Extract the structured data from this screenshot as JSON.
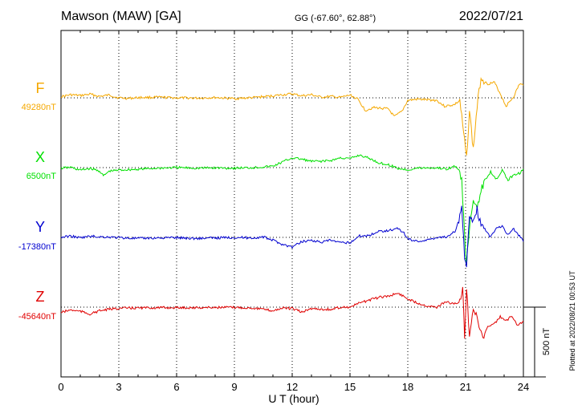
{
  "header": {
    "station": "Mawson (MAW)  [GA]",
    "coords": "GG (-67.60°,  62.88°)",
    "date": "2022/07/21"
  },
  "footer": {
    "plotted_note": "Plotted at 2022/08/21 00:53 UT",
    "scale_label": "500 nT"
  },
  "chart_data": {
    "type": "line",
    "xlabel": "U T (hour)",
    "xlim": [
      0,
      24
    ],
    "x_ticks": [
      0,
      3,
      6,
      9,
      12,
      15,
      18,
      21,
      24
    ],
    "y_unit": "nT",
    "scale_bar_nT": 500,
    "grid": true,
    "series": [
      {
        "name": "F",
        "baseline_label": "49280nT",
        "baseline_nT": 49280,
        "color": "#f5a800",
        "points": [
          [
            0,
            49288
          ],
          [
            0.5,
            49302
          ],
          [
            1,
            49296
          ],
          [
            1.5,
            49306
          ],
          [
            2,
            49290
          ],
          [
            2.5,
            49300
          ],
          [
            3,
            49280
          ],
          [
            3.5,
            49276
          ],
          [
            4,
            49282
          ],
          [
            5,
            49284
          ],
          [
            6,
            49280
          ],
          [
            7,
            49278
          ],
          [
            8,
            49282
          ],
          [
            9,
            49274
          ],
          [
            10,
            49282
          ],
          [
            11,
            49294
          ],
          [
            11.5,
            49302
          ],
          [
            12,
            49308
          ],
          [
            12.5,
            49294
          ],
          [
            13,
            49302
          ],
          [
            13.5,
            49284
          ],
          [
            14,
            49290
          ],
          [
            14.5,
            49282
          ],
          [
            15,
            49300
          ],
          [
            15.4,
            49270
          ],
          [
            15.8,
            49190
          ],
          [
            16.2,
            49210
          ],
          [
            16.6,
            49206
          ],
          [
            17,
            49200
          ],
          [
            17.3,
            49144
          ],
          [
            17.7,
            49184
          ],
          [
            18,
            49262
          ],
          [
            18.5,
            49270
          ],
          [
            19,
            49266
          ],
          [
            19.5,
            49262
          ],
          [
            19.9,
            49220
          ],
          [
            20.4,
            49230
          ],
          [
            20.7,
            49260
          ],
          [
            20.9,
            49020
          ],
          [
            21.05,
            48850
          ],
          [
            21.2,
            49190
          ],
          [
            21.4,
            48910
          ],
          [
            21.6,
            49220
          ],
          [
            21.8,
            49430
          ],
          [
            22.1,
            49380
          ],
          [
            22.5,
            49390
          ],
          [
            22.8,
            49310
          ],
          [
            23.1,
            49220
          ],
          [
            23.5,
            49290
          ],
          [
            23.8,
            49380
          ],
          [
            24,
            49370
          ]
        ]
      },
      {
        "name": "X",
        "baseline_label": "6500nT",
        "baseline_nT": 6500,
        "color": "#00e000",
        "points": [
          [
            0,
            6496
          ],
          [
            0.5,
            6502
          ],
          [
            1,
            6482
          ],
          [
            1.5,
            6494
          ],
          [
            2,
            6476
          ],
          [
            2.2,
            6440
          ],
          [
            2.5,
            6474
          ],
          [
            3,
            6482
          ],
          [
            4,
            6488
          ],
          [
            5,
            6496
          ],
          [
            6,
            6500
          ],
          [
            7,
            6496
          ],
          [
            8,
            6498
          ],
          [
            9,
            6496
          ],
          [
            10,
            6500
          ],
          [
            11,
            6510
          ],
          [
            11.5,
            6540
          ],
          [
            12,
            6570
          ],
          [
            12.5,
            6560
          ],
          [
            13,
            6544
          ],
          [
            13.5,
            6546
          ],
          [
            14,
            6550
          ],
          [
            14.5,
            6570
          ],
          [
            15,
            6564
          ],
          [
            15.5,
            6590
          ],
          [
            16,
            6566
          ],
          [
            16.5,
            6534
          ],
          [
            17,
            6520
          ],
          [
            17.5,
            6494
          ],
          [
            18,
            6484
          ],
          [
            18.5,
            6496
          ],
          [
            19,
            6498
          ],
          [
            19.5,
            6498
          ],
          [
            20,
            6490
          ],
          [
            20.5,
            6510
          ],
          [
            20.8,
            6430
          ],
          [
            20.95,
            6000
          ],
          [
            21.05,
            5810
          ],
          [
            21.2,
            6060
          ],
          [
            21.4,
            6260
          ],
          [
            21.6,
            6230
          ],
          [
            21.8,
            6330
          ],
          [
            22,
            6410
          ],
          [
            22.3,
            6470
          ],
          [
            22.6,
            6420
          ],
          [
            22.9,
            6480
          ],
          [
            23.2,
            6410
          ],
          [
            23.5,
            6450
          ],
          [
            23.8,
            6460
          ],
          [
            24,
            6490
          ]
        ]
      },
      {
        "name": "Y",
        "baseline_label": "-17380nT",
        "baseline_nT": -17380,
        "color": "#0000d0",
        "points": [
          [
            0,
            -17380
          ],
          [
            0.5,
            -17370
          ],
          [
            1,
            -17384
          ],
          [
            1.5,
            -17372
          ],
          [
            2,
            -17376
          ],
          [
            2.5,
            -17378
          ],
          [
            3,
            -17382
          ],
          [
            4,
            -17388
          ],
          [
            5,
            -17384
          ],
          [
            6,
            -17382
          ],
          [
            7,
            -17388
          ],
          [
            8,
            -17384
          ],
          [
            9,
            -17380
          ],
          [
            10,
            -17384
          ],
          [
            10.5,
            -17378
          ],
          [
            11,
            -17400
          ],
          [
            11.5,
            -17430
          ],
          [
            12,
            -17450
          ],
          [
            12.5,
            -17410
          ],
          [
            13,
            -17400
          ],
          [
            13.5,
            -17416
          ],
          [
            14,
            -17400
          ],
          [
            14.5,
            -17420
          ],
          [
            15,
            -17416
          ],
          [
            15.5,
            -17370
          ],
          [
            16,
            -17366
          ],
          [
            16.5,
            -17336
          ],
          [
            17,
            -17330
          ],
          [
            17.5,
            -17316
          ],
          [
            17.8,
            -17350
          ],
          [
            18,
            -17390
          ],
          [
            18.5,
            -17408
          ],
          [
            19,
            -17400
          ],
          [
            19.5,
            -17380
          ],
          [
            20,
            -17376
          ],
          [
            20.5,
            -17330
          ],
          [
            20.8,
            -17180
          ],
          [
            20.95,
            -17510
          ],
          [
            21.05,
            -17610
          ],
          [
            21.2,
            -17220
          ],
          [
            21.4,
            -17250
          ],
          [
            21.6,
            -17180
          ],
          [
            21.8,
            -17300
          ],
          [
            22,
            -17320
          ],
          [
            22.3,
            -17380
          ],
          [
            22.6,
            -17310
          ],
          [
            22.9,
            -17300
          ],
          [
            23.2,
            -17360
          ],
          [
            23.5,
            -17320
          ],
          [
            23.8,
            -17370
          ],
          [
            24,
            -17410
          ]
        ]
      },
      {
        "name": "Z",
        "baseline_label": "-45640nT",
        "baseline_nT": -45640,
        "color": "#e00000",
        "points": [
          [
            0,
            -45678
          ],
          [
            0.5,
            -45660
          ],
          [
            1,
            -45670
          ],
          [
            1.5,
            -45690
          ],
          [
            2,
            -45666
          ],
          [
            2.5,
            -45656
          ],
          [
            3,
            -45648
          ],
          [
            4,
            -45646
          ],
          [
            5,
            -45644
          ],
          [
            6,
            -45644
          ],
          [
            7,
            -45644
          ],
          [
            8,
            -45642
          ],
          [
            9,
            -45642
          ],
          [
            10,
            -45646
          ],
          [
            10.5,
            -45656
          ],
          [
            11,
            -45666
          ],
          [
            11.5,
            -45646
          ],
          [
            12,
            -45650
          ],
          [
            12.5,
            -45676
          ],
          [
            13,
            -45650
          ],
          [
            13.5,
            -45654
          ],
          [
            14,
            -45658
          ],
          [
            14.5,
            -45640
          ],
          [
            15,
            -45640
          ],
          [
            15.5,
            -45610
          ],
          [
            16,
            -45590
          ],
          [
            16.5,
            -45570
          ],
          [
            17,
            -45560
          ],
          [
            17.5,
            -45540
          ],
          [
            18,
            -45580
          ],
          [
            18.5,
            -45610
          ],
          [
            19,
            -45630
          ],
          [
            19.5,
            -45640
          ],
          [
            20,
            -45600
          ],
          [
            20.4,
            -45620
          ],
          [
            20.7,
            -45600
          ],
          [
            20.85,
            -45520
          ],
          [
            20.95,
            -45840
          ],
          [
            21.05,
            -45500
          ],
          [
            21.2,
            -45840
          ],
          [
            21.4,
            -45640
          ],
          [
            21.6,
            -45730
          ],
          [
            21.9,
            -45860
          ],
          [
            22.2,
            -45770
          ],
          [
            22.5,
            -45760
          ],
          [
            22.8,
            -45710
          ],
          [
            23.1,
            -45740
          ],
          [
            23.4,
            -45700
          ],
          [
            23.7,
            -45770
          ],
          [
            24,
            -45740
          ]
        ]
      }
    ]
  }
}
